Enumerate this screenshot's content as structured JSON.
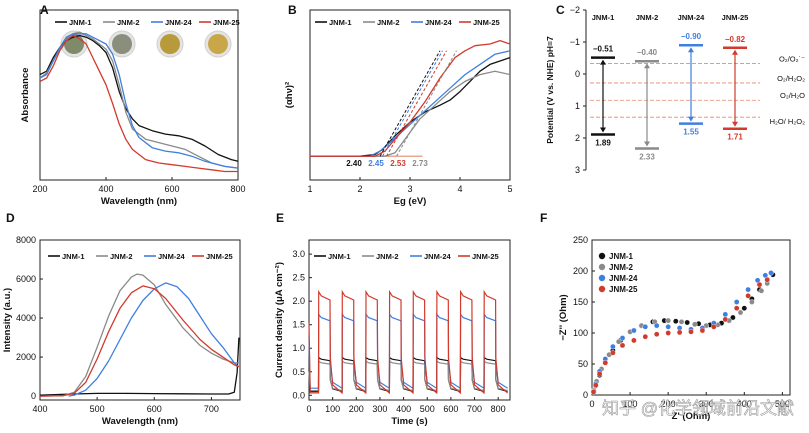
{
  "colors": {
    "jnm1": "#111111",
    "jnm2": "#8a8a8a",
    "jnm24": "#3f7fe0",
    "jnm25": "#d23a2c",
    "axis": "#222222",
    "band_line": "#e8896a",
    "sample1": "#7f8a6a",
    "sample2": "#8a8f7d",
    "sample3": "#b89a3a",
    "sample4": "#c9a748"
  },
  "watermark": "知乎 @化学领域前沿文献",
  "chart_data": [
    {
      "panel": "A",
      "type": "line",
      "xlabel": "Wavelength (nm)",
      "ylabel": "Absorbance",
      "xlim": [
        200,
        800
      ],
      "ylim": [
        0,
        1
      ],
      "xticks": [
        200,
        400,
        600,
        800
      ],
      "yticks": [],
      "legend": [
        "JNM-1",
        "JNM-2",
        "JNM-24",
        "JNM-25"
      ],
      "series": [
        {
          "name": "JNM-1",
          "color": "jnm1",
          "x": [
            200,
            220,
            240,
            260,
            280,
            300,
            320,
            340,
            360,
            380,
            400,
            420,
            440,
            460,
            480,
            500,
            540,
            580,
            620,
            660,
            700,
            740,
            780,
            800
          ],
          "y": [
            0.62,
            0.64,
            0.72,
            0.78,
            0.82,
            0.84,
            0.85,
            0.84,
            0.82,
            0.79,
            0.75,
            0.66,
            0.52,
            0.42,
            0.36,
            0.32,
            0.29,
            0.27,
            0.26,
            0.24,
            0.2,
            0.15,
            0.12,
            0.11
          ]
        },
        {
          "name": "JNM-2",
          "color": "jnm2",
          "x": [
            200,
            220,
            240,
            260,
            280,
            300,
            320,
            340,
            360,
            380,
            400,
            420,
            440,
            460,
            480,
            520,
            560,
            600,
            640,
            680,
            720,
            760,
            800
          ],
          "y": [
            0.6,
            0.63,
            0.7,
            0.77,
            0.82,
            0.86,
            0.87,
            0.85,
            0.83,
            0.8,
            0.77,
            0.7,
            0.56,
            0.4,
            0.3,
            0.24,
            0.22,
            0.2,
            0.18,
            0.14,
            0.1,
            0.08,
            0.07
          ]
        },
        {
          "name": "JNM-24",
          "color": "jnm24",
          "x": [
            200,
            220,
            240,
            260,
            280,
            300,
            320,
            340,
            360,
            380,
            400,
            420,
            440,
            460,
            480,
            500,
            540,
            580,
            620,
            660,
            700,
            760,
            800
          ],
          "y": [
            0.6,
            0.62,
            0.7,
            0.78,
            0.84,
            0.86,
            0.86,
            0.86,
            0.84,
            0.82,
            0.8,
            0.74,
            0.62,
            0.45,
            0.32,
            0.25,
            0.19,
            0.17,
            0.16,
            0.14,
            0.11,
            0.08,
            0.07
          ]
        },
        {
          "name": "JNM-25",
          "color": "jnm25",
          "x": [
            200,
            220,
            240,
            260,
            280,
            300,
            320,
            340,
            360,
            380,
            400,
            420,
            440,
            460,
            480,
            520,
            560,
            600,
            640,
            680,
            720,
            760,
            800
          ],
          "y": [
            0.58,
            0.6,
            0.67,
            0.76,
            0.82,
            0.85,
            0.83,
            0.8,
            0.72,
            0.64,
            0.56,
            0.45,
            0.33,
            0.24,
            0.18,
            0.12,
            0.1,
            0.09,
            0.08,
            0.07,
            0.06,
            0.05,
            0.05
          ]
        }
      ]
    },
    {
      "panel": "B",
      "type": "line",
      "xlabel": "Eg (eV)",
      "ylabel": "(αhν)²",
      "xlim": [
        1,
        5
      ],
      "ylim": [
        0,
        1
      ],
      "xticks": [
        1,
        2,
        3,
        4,
        5
      ],
      "yticks": [],
      "legend": [
        "JNM-1",
        "JNM-2",
        "JNM-24",
        "JNM-25"
      ],
      "baseline_y": 0.14,
      "band_gaps": [
        {
          "name": "JNM-1",
          "color": "jnm1",
          "value": 2.4,
          "label": "2.40"
        },
        {
          "name": "JNM-24",
          "color": "jnm24",
          "value": 2.45,
          "label": "2.45"
        },
        {
          "name": "JNM-25",
          "color": "jnm25",
          "value": 2.53,
          "label": "2.53"
        },
        {
          "name": "JNM-2",
          "color": "jnm2",
          "value": 2.73,
          "label": "2.73"
        }
      ],
      "series": [
        {
          "name": "JNM-1",
          "color": "jnm1",
          "x": [
            1.0,
            2.0,
            2.3,
            2.45,
            2.7,
            3.0,
            3.3,
            3.6,
            3.8,
            4.0,
            4.2,
            4.4,
            4.6,
            4.8,
            5.0
          ],
          "y": [
            0.14,
            0.14,
            0.15,
            0.18,
            0.26,
            0.34,
            0.4,
            0.44,
            0.47,
            0.52,
            0.58,
            0.64,
            0.68,
            0.7,
            0.72
          ]
        },
        {
          "name": "JNM-2",
          "color": "jnm2",
          "x": [
            1.0,
            2.5,
            2.7,
            2.8,
            3.0,
            3.2,
            3.5,
            3.8,
            4.1,
            4.4,
            4.7,
            5.0
          ],
          "y": [
            0.14,
            0.14,
            0.16,
            0.2,
            0.28,
            0.36,
            0.44,
            0.52,
            0.58,
            0.62,
            0.64,
            0.62
          ]
        },
        {
          "name": "JNM-24",
          "color": "jnm24",
          "x": [
            1.0,
            2.2,
            2.4,
            2.6,
            2.9,
            3.2,
            3.5,
            3.8,
            4.1,
            4.4,
            4.7,
            5.0
          ],
          "y": [
            0.14,
            0.14,
            0.17,
            0.22,
            0.3,
            0.38,
            0.46,
            0.54,
            0.62,
            0.68,
            0.74,
            0.76
          ]
        },
        {
          "name": "JNM-25",
          "color": "jnm25",
          "x": [
            1.0,
            2.3,
            2.5,
            2.7,
            3.0,
            3.3,
            3.6,
            3.9,
            4.1,
            4.3,
            4.6,
            4.8,
            5.0
          ],
          "y": [
            0.14,
            0.14,
            0.17,
            0.24,
            0.34,
            0.46,
            0.6,
            0.72,
            0.76,
            0.79,
            0.8,
            0.82,
            0.8
          ]
        }
      ]
    },
    {
      "panel": "C",
      "type": "band_diagram",
      "ylabel": "Potential (V vs. NHE) pH=7",
      "ylim": [
        3,
        -2
      ],
      "yticks": [
        -2,
        -1,
        0,
        1,
        2,
        3
      ],
      "columns": [
        {
          "name": "JNM-1",
          "color": "jnm1",
          "cb": -0.51,
          "vb": 1.89,
          "cb_label": "−0.51",
          "vb_label": "1.89"
        },
        {
          "name": "JNM-2",
          "color": "jnm2",
          "cb": -0.4,
          "vb": 2.33,
          "cb_label": "−0.40",
          "vb_label": "2.33"
        },
        {
          "name": "JNM-24",
          "color": "jnm24",
          "cb": -0.9,
          "vb": 1.55,
          "cb_label": "−0.90",
          "vb_label": "1.55"
        },
        {
          "name": "JNM-25",
          "color": "jnm25",
          "cb": -0.82,
          "vb": 1.71,
          "cb_label": "−0.82",
          "vb_label": "1.71"
        }
      ],
      "redox_levels": [
        {
          "label": "O₂/O₂˙⁻",
          "value": -0.33
        },
        {
          "label": "O₂/H₂O₂",
          "value": 0.28
        },
        {
          "label": "O₂/H₂O",
          "value": 0.82
        },
        {
          "label": "H₂O/ H₂O₂",
          "value": 1.35
        }
      ]
    },
    {
      "panel": "D",
      "type": "line",
      "xlabel": "Wavelength (nm)",
      "ylabel": "Intensity (a.u.)",
      "xlim": [
        400,
        750
      ],
      "ylim": [
        -200,
        8000
      ],
      "xticks": [
        400,
        500,
        600,
        700
      ],
      "yticks": [
        0,
        2000,
        4000,
        6000,
        8000
      ],
      "legend": [
        "JNM-1",
        "JNM-2",
        "JNM-24",
        "JNM-25"
      ],
      "series": [
        {
          "name": "JNM-1",
          "color": "jnm1",
          "x": [
            400,
            450,
            500,
            550,
            600,
            650,
            700,
            730,
            740,
            745,
            748
          ],
          "y": [
            50,
            100,
            140,
            140,
            130,
            120,
            110,
            110,
            200,
            1200,
            3000
          ]
        },
        {
          "name": "JNM-2",
          "color": "jnm2",
          "x": [
            400,
            440,
            460,
            480,
            500,
            520,
            540,
            560,
            570,
            580,
            600,
            620,
            650,
            680,
            700,
            720,
            740,
            748
          ],
          "y": [
            0,
            20,
            200,
            1000,
            2500,
            4100,
            5400,
            6100,
            6250,
            6200,
            5700,
            4700,
            3500,
            2600,
            2200,
            1900,
            1700,
            1700
          ]
        },
        {
          "name": "JNM-24",
          "color": "jnm24",
          "x": [
            450,
            460,
            480,
            500,
            520,
            540,
            560,
            580,
            600,
            620,
            640,
            660,
            680,
            700,
            720,
            740,
            748
          ],
          "y": [
            0,
            50,
            300,
            900,
            1800,
            2900,
            4000,
            4900,
            5500,
            5800,
            5600,
            5000,
            4100,
            3200,
            2500,
            1700,
            1500
          ]
        },
        {
          "name": "JNM-25",
          "color": "jnm25",
          "x": [
            400,
            440,
            460,
            480,
            500,
            520,
            540,
            560,
            580,
            600,
            620,
            650,
            680,
            700,
            720,
            740,
            748
          ],
          "y": [
            0,
            20,
            150,
            700,
            1900,
            3300,
            4500,
            5300,
            5650,
            5500,
            5000,
            3900,
            2900,
            2400,
            2000,
            1600,
            1500
          ]
        }
      ]
    },
    {
      "panel": "E",
      "type": "line",
      "xlabel": "Time (s)",
      "ylabel": "Current density (μA cm⁻²)",
      "xlim": [
        0,
        850
      ],
      "ylim": [
        -0.1,
        3.3
      ],
      "xticks": [
        0,
        100,
        200,
        300,
        400,
        500,
        600,
        700,
        800
      ],
      "yticks": [
        0.0,
        0.5,
        1.0,
        1.5,
        2.0,
        2.5,
        3.0
      ],
      "legend": [
        "JNM-1",
        "JNM-2",
        "JNM-24",
        "JNM-25"
      ],
      "on_off": {
        "period": 100,
        "on_start": 40,
        "on_duration": 50,
        "cycles": 8
      },
      "series": [
        {
          "name": "JNM-1",
          "color": "jnm1",
          "on_value": 0.8,
          "off_value": 0.08
        },
        {
          "name": "JNM-2",
          "color": "jnm2",
          "on_value": 0.72,
          "off_value": 0.1
        },
        {
          "name": "JNM-24",
          "color": "jnm24",
          "on_value": 1.72,
          "off_value": 0.15
        },
        {
          "name": "JNM-25",
          "color": "jnm25",
          "on_value": 2.2,
          "off_value": 0.05
        }
      ]
    },
    {
      "panel": "F",
      "type": "scatter",
      "xlabel": "Z' (Ohm)",
      "ylabel": "−Z'' (Ohm)",
      "xlim": [
        0,
        520
      ],
      "ylim": [
        0,
        250
      ],
      "xticks": [
        0,
        100,
        200,
        300,
        400,
        500
      ],
      "yticks": [
        0,
        50,
        100,
        150,
        200,
        250
      ],
      "legend": [
        "JNM-1",
        "JNM-2",
        "JNM-24",
        "JNM-25"
      ],
      "series": [
        {
          "name": "JNM-1",
          "color": "jnm1",
          "x": [
            5,
            10,
            20,
            35,
            55,
            75,
            100,
            130,
            160,
            190,
            220,
            250,
            280,
            310,
            340,
            370,
            400,
            420,
            440,
            460,
            475
          ],
          "y": [
            5,
            15,
            32,
            52,
            72,
            88,
            102,
            112,
            118,
            120,
            119,
            117,
            115,
            113,
            116,
            125,
            140,
            155,
            170,
            185,
            194
          ]
        },
        {
          "name": "JNM-2",
          "color": "jnm2",
          "x": [
            5,
            12,
            25,
            45,
            70,
            100,
            130,
            165,
            200,
            235,
            270,
            300,
            330,
            360,
            390,
            420,
            445,
            460
          ],
          "y": [
            8,
            22,
            42,
            65,
            86,
            102,
            112,
            118,
            120,
            118,
            114,
            112,
            113,
            120,
            133,
            150,
            168,
            180
          ]
        },
        {
          "name": "JNM-24",
          "color": "jnm24",
          "x": [
            5,
            10,
            20,
            35,
            55,
            80,
            110,
            140,
            170,
            200,
            230,
            260,
            290,
            320,
            350,
            380,
            410,
            435,
            455,
            470
          ],
          "y": [
            6,
            18,
            38,
            58,
            78,
            92,
            104,
            110,
            112,
            110,
            108,
            106,
            108,
            116,
            130,
            150,
            170,
            185,
            193,
            197
          ]
        },
        {
          "name": "JNM-25",
          "color": "jnm25",
          "x": [
            4,
            10,
            20,
            35,
            55,
            80,
            110,
            140,
            170,
            200,
            230,
            260,
            290,
            320,
            350,
            380,
            410,
            440,
            460
          ],
          "y": [
            5,
            16,
            34,
            52,
            68,
            80,
            88,
            94,
            98,
            100,
            101,
            102,
            104,
            110,
            122,
            140,
            160,
            178,
            186
          ]
        }
      ]
    }
  ]
}
